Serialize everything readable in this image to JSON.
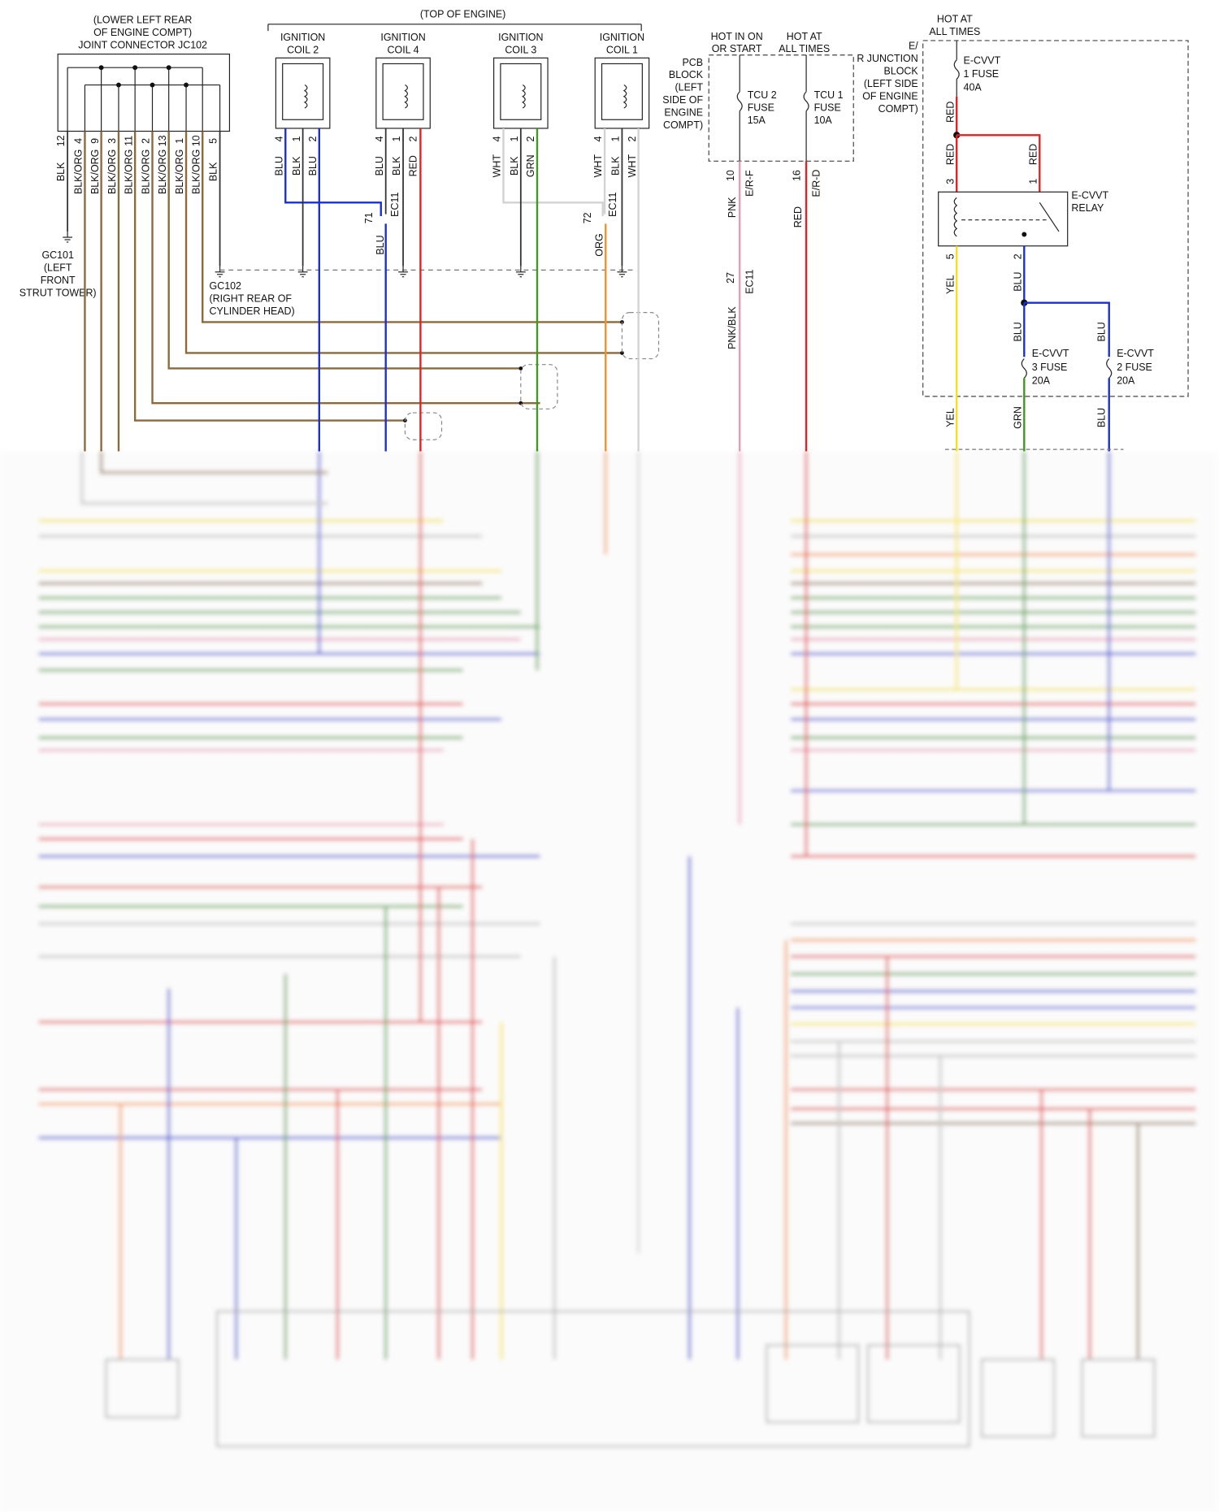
{
  "jc102": {
    "title": [
      "(LOWER LEFT REAR",
      "OF ENGINE COMPT)",
      "JOINT CONNECTOR JC102"
    ],
    "pins": [
      "12",
      "4",
      "9",
      "3",
      "11",
      "2",
      "13",
      "1",
      "10",
      "5"
    ],
    "wires": [
      "BLK",
      "BLK/ORG",
      "BLK/ORG",
      "BLK/ORG",
      "BLK/ORG",
      "BLK/ORG",
      "BLK/ORG",
      "BLK/ORG",
      "BLK/ORG",
      "BLK"
    ]
  },
  "gc101": [
    "GC101",
    "(LEFT",
    "FRONT",
    "STRUT TOWER)"
  ],
  "gc102": [
    "GC102",
    "(RIGHT REAR OF",
    "CYLINDER HEAD)"
  ],
  "top_of_engine": "(TOP OF ENGINE)",
  "coils": [
    {
      "name": [
        "IGNITION",
        "COIL 2"
      ],
      "pins": [
        "4",
        "1",
        "2"
      ],
      "wires": [
        "BLU",
        "BLK",
        "BLU"
      ]
    },
    {
      "name": [
        "IGNITION",
        "COIL 4"
      ],
      "pins": [
        "4",
        "1",
        "2"
      ],
      "wires": [
        "BLU",
        "BLK",
        "RED"
      ]
    },
    {
      "name": [
        "IGNITION",
        "COIL 3"
      ],
      "pins": [
        "4",
        "1",
        "2"
      ],
      "wires": [
        "WHT",
        "BLK",
        "GRN"
      ]
    },
    {
      "name": [
        "IGNITION",
        "COIL 1"
      ],
      "pins": [
        "4",
        "1",
        "2"
      ],
      "wires": [
        "WHT",
        "BLK",
        "WHT"
      ]
    }
  ],
  "ec11_left": {
    "pin": "71",
    "conn": "EC11",
    "wire": "BLU"
  },
  "ec11_right": {
    "pin": "72",
    "conn": "EC11",
    "wire": "ORG"
  },
  "pcb": {
    "hot_on": [
      "HOT IN ON",
      "OR START"
    ],
    "hot_all": [
      "HOT AT",
      "ALL TIMES"
    ],
    "block": [
      "PCB",
      "BLOCK",
      "(LEFT",
      "SIDE OF",
      "ENGINE",
      "COMPT)"
    ],
    "fuse_a": [
      "TCU 2",
      "FUSE",
      "15A"
    ],
    "fuse_b": [
      "TCU 1",
      "FUSE",
      "10A"
    ],
    "out_a": {
      "pin": "10",
      "conn": "E/R-F",
      "wire": "PNK"
    },
    "out_b": {
      "pin": "16",
      "conn": "E/R-D",
      "wire": "RED"
    },
    "ec11": {
      "pin": "27",
      "conn": "EC11",
      "wire": "PNK/BLK"
    }
  },
  "junction": {
    "hot": [
      "HOT AT",
      "ALL TIMES"
    ],
    "block": [
      "E/",
      "R JUNCTION",
      "BLOCK",
      "(LEFT SIDE",
      "OF ENGINE",
      "COMPT)"
    ],
    "fuse_1": [
      "E-CVVT",
      "1 FUSE",
      "40A"
    ],
    "relay": [
      "E-CVVT",
      "RELAY"
    ],
    "fuse_3": [
      "E-CVVT",
      "3 FUSE",
      "20A"
    ],
    "fuse_2": [
      "E-CVVT",
      "2 FUSE",
      "20A"
    ],
    "wire_fuse1": "RED",
    "wire_pin3": "RED",
    "wire_pin1": "RED",
    "relay_pins": [
      "3",
      "1",
      "5",
      "2"
    ],
    "wire_pin5": "YEL",
    "wire_pin2": "BLU",
    "wire_fuse3_in": "BLU",
    "wire_fuse2_in": "BLU",
    "outputs": [
      "YEL",
      "GRN",
      "BLU"
    ]
  }
}
